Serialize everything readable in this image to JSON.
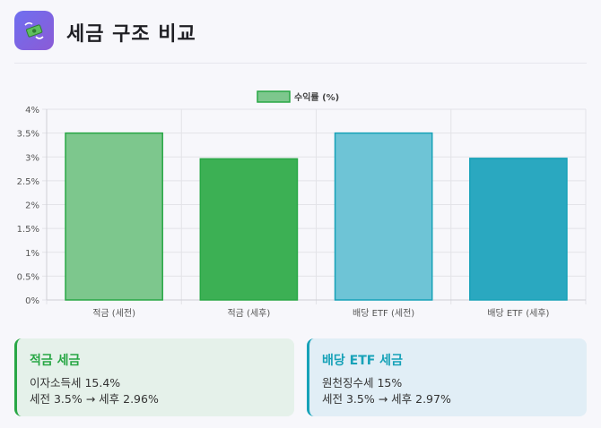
{
  "header": {
    "title": "세금 구조 비교",
    "icon": "money-with-wings-icon"
  },
  "chart_data": {
    "type": "bar",
    "legend": "수익률 (%)",
    "legend_position": "top-center",
    "categories": [
      "적금 (세전)",
      "적금 (세후)",
      "배당 ETF (세전)",
      "배당 ETF (세후)"
    ],
    "values": [
      3.5,
      2.96,
      3.5,
      2.97
    ],
    "ylim": [
      0,
      4
    ],
    "yticks": [
      "0%",
      "0.5%",
      "1%",
      "1.5%",
      "2%",
      "2.5%",
      "3%",
      "3.5%",
      "4%"
    ],
    "ytick_values": [
      0,
      0.5,
      1,
      1.5,
      2,
      2.5,
      3,
      3.5,
      4
    ],
    "colors": [
      "#7dc78d",
      "#3cb054",
      "#6ec4d6",
      "#2aa8c0"
    ],
    "border_colors": [
      "#28a745",
      "#28a745",
      "#17a2b8",
      "#17a2b8"
    ],
    "grid": true
  },
  "cards": {
    "savings": {
      "title": "적금 세금",
      "line1": "이자소득세 15.4%",
      "line2": "세전 3.5% → 세후 2.96%"
    },
    "etf": {
      "title": "배당 ETF 세금",
      "line1": "원천징수세 15%",
      "line2": "세전 3.5% → 세후 2.97%"
    }
  }
}
